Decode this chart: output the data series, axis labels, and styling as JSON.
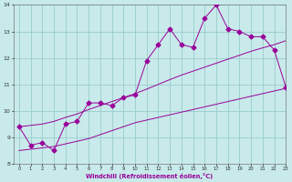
{
  "x": [
    0,
    1,
    2,
    3,
    4,
    5,
    6,
    7,
    8,
    9,
    10,
    11,
    12,
    13,
    14,
    15,
    16,
    17,
    18,
    19,
    20,
    21,
    22,
    23
  ],
  "y_line": [
    9.4,
    8.7,
    8.8,
    8.5,
    9.5,
    9.6,
    10.3,
    10.3,
    10.2,
    10.5,
    10.6,
    11.9,
    12.5,
    13.1,
    12.5,
    12.4,
    13.5,
    14.0,
    13.1,
    13.0,
    12.8,
    12.8,
    12.3,
    10.9
  ],
  "y_lower": [
    8.5,
    8.55,
    8.6,
    8.65,
    8.75,
    8.85,
    8.95,
    9.1,
    9.25,
    9.4,
    9.55,
    9.65,
    9.75,
    9.85,
    9.95,
    10.05,
    10.15,
    10.25,
    10.35,
    10.45,
    10.55,
    10.65,
    10.75,
    10.85
  ],
  "y_upper": [
    9.4,
    9.45,
    9.5,
    9.6,
    9.75,
    9.88,
    10.05,
    10.2,
    10.35,
    10.5,
    10.65,
    10.82,
    11.0,
    11.18,
    11.35,
    11.5,
    11.65,
    11.8,
    11.95,
    12.1,
    12.25,
    12.38,
    12.5,
    12.65
  ],
  "xlim": [
    -0.5,
    23
  ],
  "ylim": [
    8,
    14
  ],
  "yticks": [
    8,
    9,
    10,
    11,
    12,
    13,
    14
  ],
  "xticks": [
    0,
    1,
    2,
    3,
    4,
    5,
    6,
    7,
    8,
    9,
    10,
    11,
    12,
    13,
    14,
    15,
    16,
    17,
    18,
    19,
    20,
    21,
    22,
    23
  ],
  "xlabel": "Windchill (Refroidissement éolien,°C)",
  "line_color": "#990099",
  "bg_color": "#c8eaea",
  "grid_color": "#99cccc",
  "marker": "D",
  "marker_size": 2.5
}
